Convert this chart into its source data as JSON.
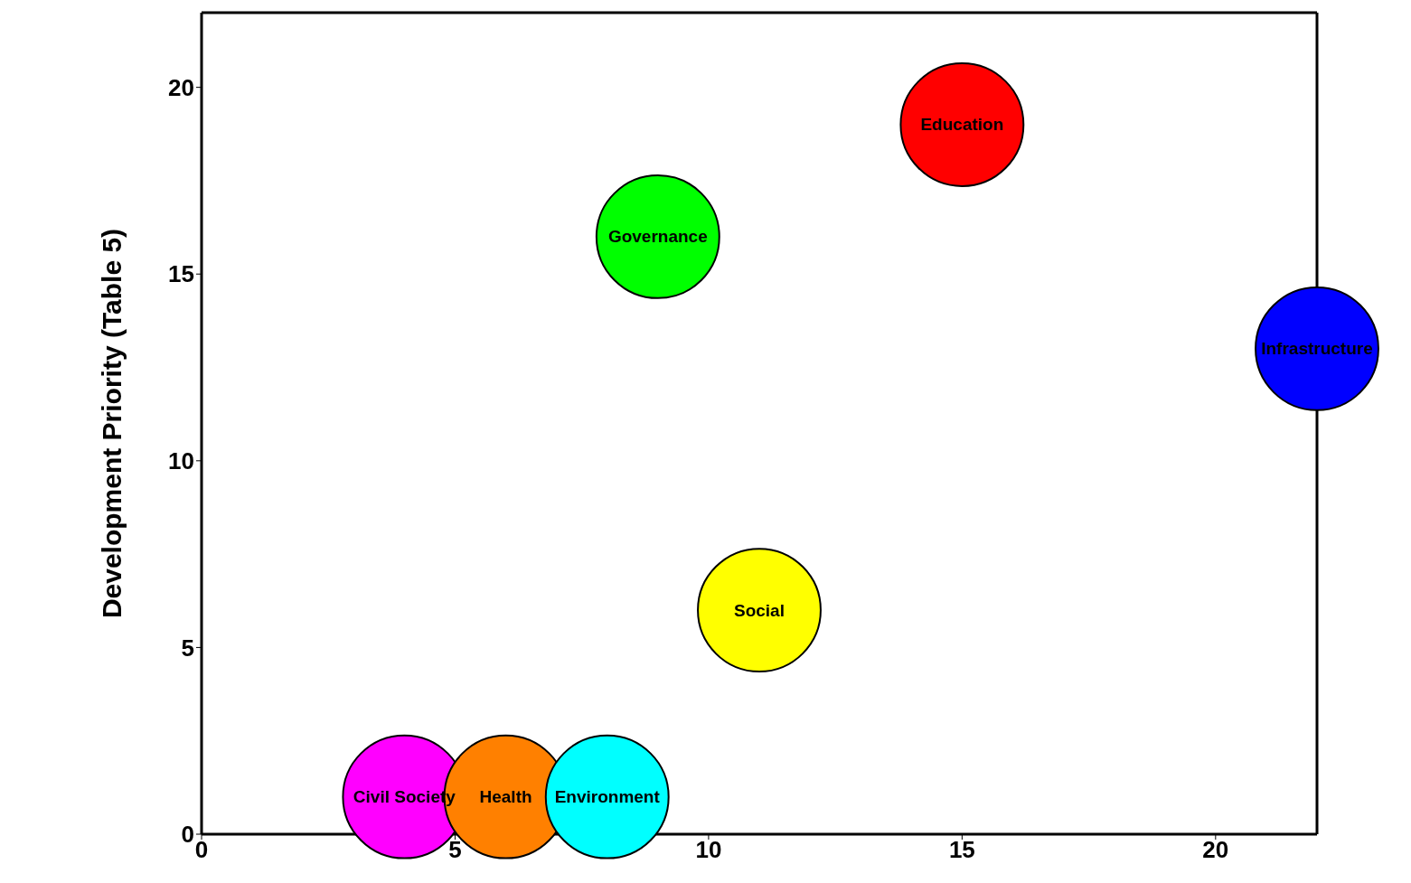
{
  "chart_data": {
    "type": "bubble",
    "ylabel": "Development Priority (Table 5)",
    "xlim": [
      0,
      22
    ],
    "ylim": [
      0,
      22
    ],
    "xticks": [
      0,
      5,
      10,
      15,
      20
    ],
    "yticks": [
      0,
      5,
      10,
      15,
      20
    ],
    "legend": false,
    "marker": "circle",
    "series": [
      {
        "name": "Education",
        "color": "#ff0000",
        "x": [
          15
        ],
        "values": [
          19
        ],
        "sizes": [
          1
        ]
      },
      {
        "name": "Governance",
        "color": "#00ff00",
        "x": [
          9
        ],
        "values": [
          16
        ],
        "sizes": [
          1
        ]
      },
      {
        "name": "Infrastructure",
        "color": "#0000ff",
        "x": [
          22
        ],
        "values": [
          13
        ],
        "sizes": [
          1
        ]
      },
      {
        "name": "Social",
        "color": "#ffff00",
        "x": [
          11
        ],
        "values": [
          6
        ],
        "sizes": [
          1
        ]
      },
      {
        "name": "Civil Society",
        "color": "#ff00ff",
        "x": [
          4
        ],
        "values": [
          1
        ],
        "sizes": [
          1
        ]
      },
      {
        "name": "Health",
        "color": "#ff8000",
        "x": [
          6
        ],
        "values": [
          1
        ],
        "sizes": [
          1
        ]
      },
      {
        "name": "Environment",
        "color": "#00ffff",
        "x": [
          8
        ],
        "values": [
          1
        ],
        "sizes": [
          1
        ]
      }
    ]
  }
}
